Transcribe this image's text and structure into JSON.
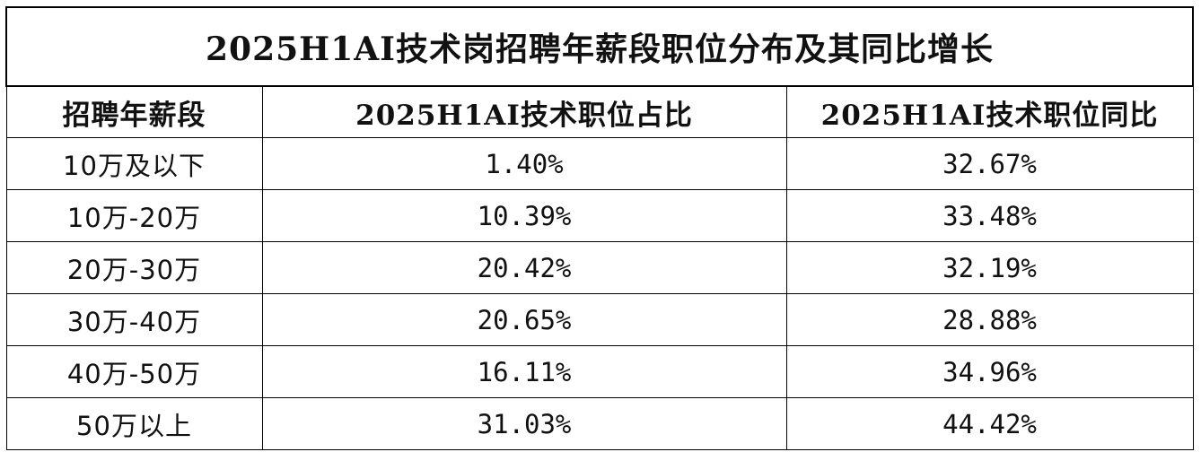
{
  "table": {
    "title": "2025H1AI技术岗招聘年薪段职位分布及其同比增长",
    "headers": [
      "招聘年薪段",
      "2025H1AI技术职位占比",
      "2025H1AI技术职位同比"
    ],
    "rows": [
      {
        "band": "10万及以下",
        "share": "1.40%",
        "yoy": "32.67%"
      },
      {
        "band": "10万-20万",
        "share": "10.39%",
        "yoy": "33.48%"
      },
      {
        "band": "20万-30万",
        "share": "20.42%",
        "yoy": "32.19%"
      },
      {
        "band": "30万-40万",
        "share": "20.65%",
        "yoy": "28.88%"
      },
      {
        "band": "40万-50万",
        "share": "16.11%",
        "yoy": "34.96%"
      },
      {
        "band": "50万以上",
        "share": "31.03%",
        "yoy": "44.42%"
      }
    ]
  }
}
